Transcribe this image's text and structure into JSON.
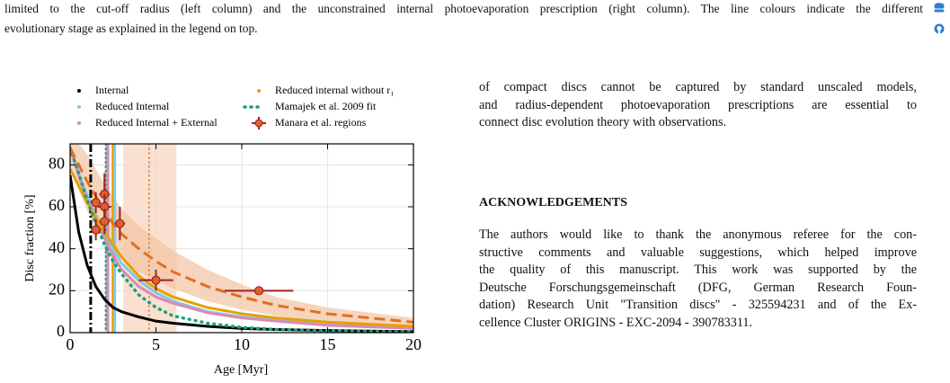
{
  "caption": {
    "lines": [
      "limited to the cut-off radius (left column) and the unconstrained internal photoevaporation prescription (right column). The line colours indicate the different",
      "evolutionary stage as explained in the legend on top."
    ]
  },
  "chart_data": {
    "type": "line",
    "xlabel": "Age [Myr]",
    "ylabel": "Disc fraction [%]",
    "xlim": [
      0,
      20
    ],
    "ylim": [
      0,
      90
    ],
    "xticks": [
      0,
      5,
      10,
      15,
      20
    ],
    "yticks": [
      0,
      20,
      40,
      60,
      80
    ],
    "grid": true,
    "x": [
      0,
      0.5,
      1,
      1.5,
      2,
      2.5,
      3,
      4,
      5,
      6,
      8,
      10,
      12,
      15,
      20
    ],
    "band": {
      "color": "#f2c3a3",
      "lower": [
        80,
        68,
        58,
        50,
        44,
        39,
        35,
        29,
        25,
        21,
        15,
        11,
        8,
        5,
        3
      ],
      "upper": [
        90,
        90,
        85,
        78,
        71,
        65,
        59,
        51,
        45,
        39,
        30,
        23,
        17,
        12,
        7
      ]
    },
    "vspan": {
      "range": [
        3.1,
        6.2
      ],
      "color": "#f7d6c0"
    },
    "vlines": [
      {
        "x": 1.2,
        "color": "#000000",
        "dash": "dashdot"
      },
      {
        "x": 2.1,
        "color": "#1aa37a",
        "dash": "dotted"
      },
      {
        "x": 2.2,
        "color": "#d98bb3",
        "dash": "solid"
      },
      {
        "x": 2.5,
        "color": "#e69f00",
        "dash": "solid"
      },
      {
        "x": 2.6,
        "color": "#7fc8e8",
        "dash": "solid"
      },
      {
        "x": 4.6,
        "color": "#e07020",
        "dash": "dotted"
      }
    ],
    "series": [
      {
        "name": "Internal",
        "color": "#000000",
        "dash": "solid",
        "values": [
          75,
          48,
          32,
          22,
          16,
          12,
          10,
          7.5,
          5.5,
          4.5,
          3,
          2,
          1.5,
          1,
          0.5
        ]
      },
      {
        "name": "Reduced Internal",
        "color": "#7fc8e8",
        "dash": "solid",
        "values": [
          88,
          76,
          65,
          56,
          48,
          40,
          33,
          25,
          19,
          15,
          10,
          7.5,
          6,
          4,
          2.5
        ]
      },
      {
        "name": "Reduced Internal + External",
        "color": "#d98bb3",
        "dash": "solid",
        "values": [
          88,
          75,
          63,
          54,
          45,
          37,
          30,
          22,
          17,
          14,
          9.5,
          7,
          5.5,
          3.5,
          2
        ]
      },
      {
        "name": "Reduced internal without r₁",
        "color": "#e69f00",
        "dash": "solid",
        "values": [
          78,
          70,
          62,
          55,
          48,
          42,
          36,
          27,
          21,
          17,
          12,
          9,
          7,
          5,
          3
        ]
      },
      {
        "name": "Mamajek et al. 2009 fit",
        "color": "#1aa37a",
        "dash": "dotted",
        "values": [
          88,
          76,
          63,
          52,
          42,
          34,
          28,
          18,
          12,
          8,
          4.5,
          2.5,
          1.5,
          0.8,
          0.3
        ]
      },
      {
        "color": "#e07020",
        "dash": "dashed",
        "values": [
          88,
          80,
          72,
          65,
          58,
          52,
          47,
          40,
          34,
          29,
          22,
          17,
          13,
          9,
          5
        ]
      }
    ],
    "points": {
      "name": "Manara et al. regions",
      "color": "#a02020",
      "marker_color": "#e0602a",
      "x": [
        1.5,
        1.5,
        2.0,
        2.0,
        2.0,
        2.9,
        5.0,
        11.0
      ],
      "y": [
        49,
        62,
        66,
        60,
        53,
        52,
        25,
        20
      ],
      "xerr": [
        0.3,
        0.3,
        0.3,
        0.4,
        0.3,
        0.3,
        1.0,
        2.0
      ],
      "yerr": [
        5,
        5,
        10,
        6,
        6,
        8,
        5,
        2
      ]
    }
  },
  "body": {
    "paragraph1": [
      "of compact discs cannot be captured by standard unscaled models,",
      "and radius-dependent photoevaporation prescriptions are essential to",
      "connect disc evolution theory with observations."
    ],
    "heading": "ACKNOWLEDGEMENTS",
    "paragraph2": [
      "The authors would like to thank the anonymous referee for the con-",
      "structive comments and valuable suggestions, which helped improve",
      "the quality of this manuscript. This work was supported by the",
      "Deutsche Forschungsgemeinschaft (DFG, German Research Foun-",
      "dation) Research Unit \"Transition discs\" - 325594231 and of the Ex-",
      "cellence Cluster ORIGINS - EXC-2094 - 390783311."
    ]
  }
}
